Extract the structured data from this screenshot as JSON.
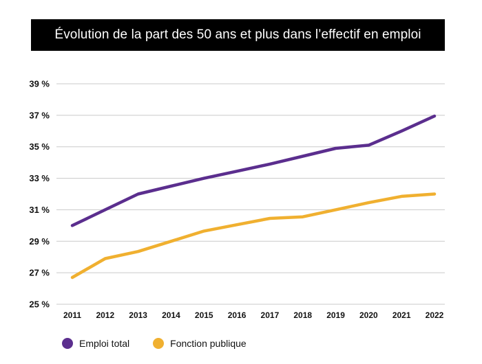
{
  "chart_data": {
    "type": "line",
    "title": "Évolution de la part des 50 ans et plus dans l’effectif en emploi",
    "x": [
      "2011",
      "2012",
      "2013",
      "2014",
      "2015",
      "2016",
      "2017",
      "2018",
      "2019",
      "2020",
      "2021",
      "2022"
    ],
    "series": [
      {
        "name": "Emploi total",
        "color": "#5b2e8e",
        "values": [
          30.0,
          31.0,
          32.0,
          32.5,
          33.0,
          33.45,
          33.9,
          34.4,
          34.9,
          35.1,
          36.0,
          36.95
        ]
      },
      {
        "name": "Fonction publique",
        "color": "#f0b030",
        "values": [
          26.7,
          27.9,
          28.35,
          29.0,
          29.65,
          30.05,
          30.45,
          30.55,
          31.0,
          31.45,
          31.85,
          32.0
        ]
      }
    ],
    "y_ticks": [
      "39 %",
      "37 %",
      "35 %",
      "33 %",
      "31 %",
      "29 %",
      "27 %",
      "25 %"
    ],
    "ylim": [
      25,
      39
    ],
    "y_step": 2,
    "grid": true,
    "legend": "bottom-left"
  }
}
